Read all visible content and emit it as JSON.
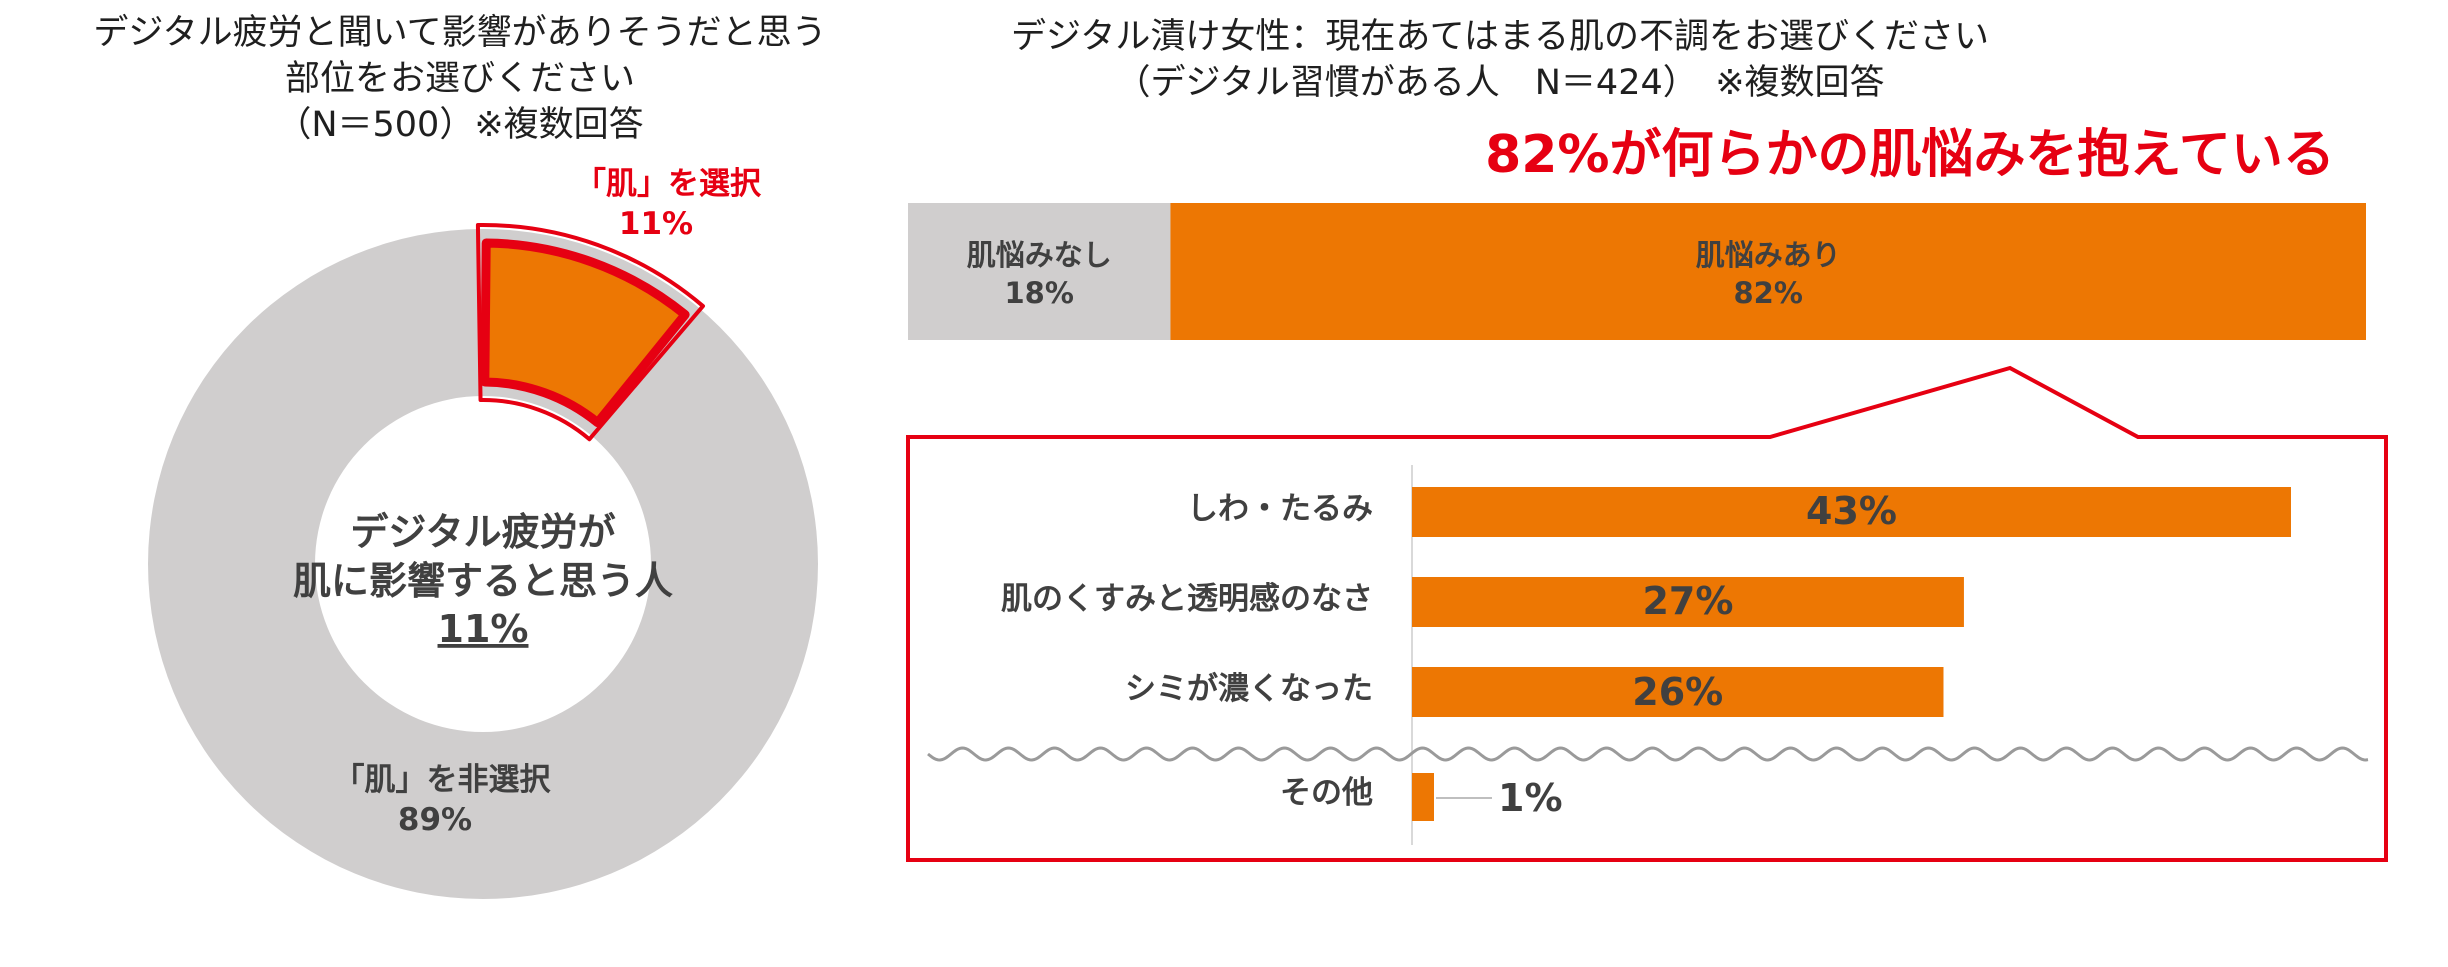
{
  "left_chart": {
    "title_lines": [
      "デジタル疲労と聞いて影響がありそうだと思う",
      "部位をお選びください",
      "（N＝500）※複数回答"
    ],
    "center_lines": [
      "デジタル疲労が",
      "肌に影響すると思う人"
    ],
    "center_value": "11%",
    "selected_label": "「肌」を選択",
    "selected_value": "11%",
    "unselected_label": "「肌」を非選択",
    "unselected_value": "89%"
  },
  "right_chart": {
    "title_lines": [
      "デジタル漬け女性：現在あてはまる肌の不調をお選びください",
      "（デジタル習慣がある人　N＝424）　※複数回答"
    ],
    "highlight": "82%が何らかの肌悩みを抱えている",
    "stack_no_label": "肌悩みなし",
    "stack_no_value": "18%",
    "stack_yes_label": "肌悩みあり",
    "stack_yes_value": "82%",
    "bars": [
      {
        "label": "しわ・たるみ",
        "value_label": "43%"
      },
      {
        "label": "肌のくすみと透明感のなさ",
        "value_label": "27%"
      },
      {
        "label": "シミが濃くなった",
        "value_label": "26%"
      },
      {
        "label": "その他",
        "value_label": "1%"
      }
    ]
  },
  "colors": {
    "orange": "#ED7703",
    "gray": "#D0CECE",
    "red": "#E60012",
    "dark_text": "#404040"
  },
  "chart_data": [
    {
      "type": "pie",
      "title": "デジタル疲労と聞いて影響がありそうだと思う部位をお選びください（N＝500）※複数回答",
      "labels": [
        "「肌」を選択",
        "「肌」を非選択"
      ],
      "values": [
        11,
        89
      ]
    },
    {
      "type": "bar",
      "title": "デジタル漬け女性：現在あてはまる肌の不調をお選びください（デジタル習慣がある人　N＝424）　※複数回答",
      "categories": [
        "肌悩みなし",
        "肌悩みあり"
      ],
      "values": [
        18,
        82
      ]
    },
    {
      "type": "bar",
      "categories": [
        "しわ・たるみ",
        "肌のくすみと透明感のなさ",
        "シミが濃くなった",
        "その他"
      ],
      "values": [
        43,
        27,
        26,
        1
      ],
      "xlim": [
        0,
        50
      ]
    }
  ]
}
